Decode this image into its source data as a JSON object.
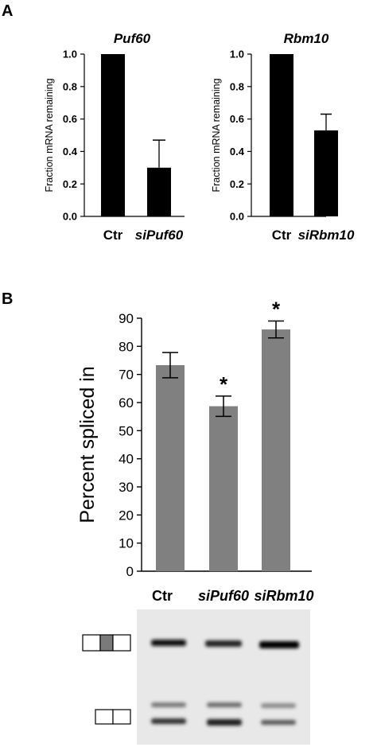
{
  "panel_labels": {
    "a": "A",
    "b": "B"
  },
  "chart_data": [
    {
      "type": "bar",
      "title": "Puf60",
      "ylabel": "Fraction mRNA remaining",
      "xlabel": "",
      "categories": [
        "Ctr",
        "siPuf60"
      ],
      "values": [
        1.0,
        0.3
      ],
      "errors": [
        0,
        0.17
      ],
      "ylim": [
        0,
        1.0
      ],
      "yticks": [
        "0.0",
        "0.2",
        "0.4",
        "0.6",
        "0.8",
        "1.0"
      ],
      "bar_color": "#000000",
      "grid": false
    },
    {
      "type": "bar",
      "title": "Rbm10",
      "ylabel": "Fraction mRNA remaining",
      "xlabel": "",
      "categories": [
        "Ctr",
        "siRbm10"
      ],
      "values": [
        1.0,
        0.53
      ],
      "errors": [
        0,
        0.1
      ],
      "ylim": [
        0,
        1.0
      ],
      "yticks": [
        "0.0",
        "0.2",
        "0.4",
        "0.6",
        "0.8",
        "1.0"
      ],
      "bar_color": "#000000",
      "grid": false
    },
    {
      "type": "bar",
      "title": "",
      "ylabel": "Percent spliced in",
      "xlabel": "",
      "categories": [
        "Ctr",
        "siPuf60",
        "siRbm10"
      ],
      "values": [
        73.3,
        58.7,
        86.0
      ],
      "errors": [
        4.5,
        3.6,
        3.0
      ],
      "significance": [
        "",
        "*",
        "*"
      ],
      "ylim": [
        0,
        90
      ],
      "yticks": [
        "0",
        "10",
        "20",
        "30",
        "40",
        "50",
        "60",
        "70",
        "80",
        "90"
      ],
      "bar_color": "#808080",
      "grid": false
    }
  ],
  "gel": {
    "lanes": [
      "Ctr",
      "siPuf60",
      "siRbm10"
    ]
  }
}
